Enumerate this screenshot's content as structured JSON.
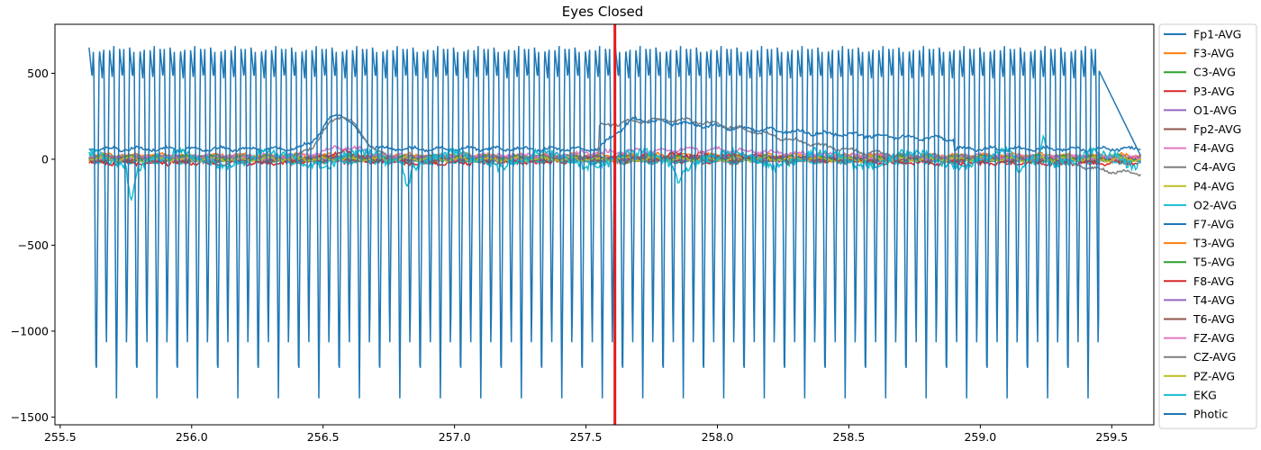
{
  "chart_data": {
    "type": "line",
    "title": "Eyes Closed",
    "xlabel": "",
    "ylabel": "",
    "xlim": [
      255.48,
      259.66
    ],
    "ylim": [
      -1545,
      785
    ],
    "xticks": [
      255.5,
      256.0,
      256.5,
      257.0,
      257.5,
      258.0,
      258.5,
      259.0,
      259.5
    ],
    "xtick_labels": [
      "255.5",
      "256.0",
      "256.5",
      "257.0",
      "257.5",
      "258.0",
      "258.5",
      "259.0",
      "259.5"
    ],
    "yticks": [
      500,
      0,
      -500,
      -1000,
      -1500
    ],
    "ytick_labels": [
      "500",
      "0",
      "−500",
      "−1000",
      "−1500"
    ],
    "grid": false,
    "legend_position": "outside-right",
    "marker_x": 257.61,
    "marker_color": "#e41a1c",
    "time_range": [
      255.61,
      259.61
    ],
    "series": [
      {
        "name": "Fp1-AVG",
        "color": "#1f77b4",
        "kind": "eeg",
        "base": 5,
        "noise": 8
      },
      {
        "name": "F3-AVG",
        "color": "#ff7f0e",
        "kind": "eeg",
        "base": 10,
        "noise": 10
      },
      {
        "name": "C3-AVG",
        "color": "#2ca02c",
        "kind": "eeg",
        "base": -5,
        "noise": 8
      },
      {
        "name": "P3-AVG",
        "color": "#d62728",
        "kind": "eeg",
        "base": -10,
        "noise": 12
      },
      {
        "name": "O1-AVG",
        "color": "#9467bd",
        "kind": "eeg",
        "base": 0,
        "noise": 10
      },
      {
        "name": "Fp2-AVG",
        "color": "#8c564b",
        "kind": "eeg",
        "base": 8,
        "noise": 8
      },
      {
        "name": "F4-AVG",
        "color": "#e377c2",
        "kind": "eeg",
        "base": 15,
        "noise": 12
      },
      {
        "name": "C4-AVG",
        "color": "#7f7f7f",
        "kind": "eeg",
        "base": 0,
        "noise": 8
      },
      {
        "name": "P4-AVG",
        "color": "#bcbd22",
        "kind": "eeg",
        "base": 5,
        "noise": 10
      },
      {
        "name": "O2-AVG",
        "color": "#17becf",
        "kind": "eeg",
        "base": -10,
        "noise": 10
      },
      {
        "name": "F7-AVG",
        "color": "#1f77b4",
        "kind": "eog_f7",
        "base": 60,
        "noise": 8
      },
      {
        "name": "T3-AVG",
        "color": "#ff7f0e",
        "kind": "eeg",
        "base": 20,
        "noise": 10
      },
      {
        "name": "T5-AVG",
        "color": "#2ca02c",
        "kind": "eeg",
        "base": 10,
        "noise": 8
      },
      {
        "name": "F8-AVG",
        "color": "#d62728",
        "kind": "eog_small",
        "base": -20,
        "noise": 10
      },
      {
        "name": "T4-AVG",
        "color": "#9467bd",
        "kind": "eeg",
        "base": 5,
        "noise": 8
      },
      {
        "name": "T6-AVG",
        "color": "#8c564b",
        "kind": "eeg",
        "base": 0,
        "noise": 10
      },
      {
        "name": "FZ-AVG",
        "color": "#e377c2",
        "kind": "eog_small",
        "base": 10,
        "noise": 10
      },
      {
        "name": "CZ-AVG",
        "color": "#7f7f7f",
        "kind": "eog_cz",
        "base": 10,
        "noise": 8
      },
      {
        "name": "PZ-AVG",
        "color": "#bcbd22",
        "kind": "eeg",
        "base": 0,
        "noise": 8
      },
      {
        "name": "EKG",
        "color": "#17becf",
        "kind": "ekg",
        "base": 0,
        "noise": 25
      },
      {
        "name": "Photic",
        "color": "#1f77b4",
        "kind": "photic",
        "base": 0,
        "noise": 0
      }
    ]
  }
}
